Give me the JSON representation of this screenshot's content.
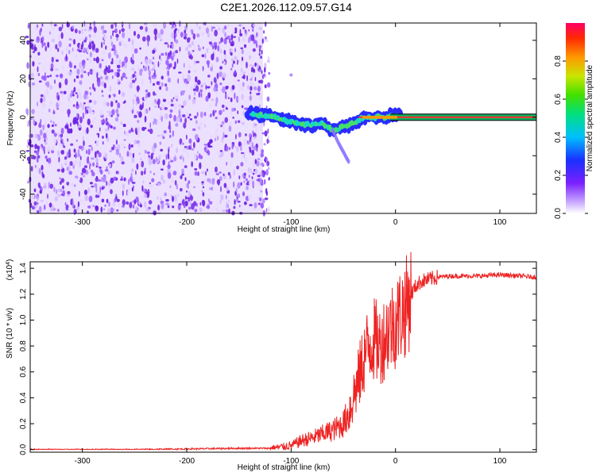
{
  "title": "C2E1.2026.112.09.57.G14",
  "chart_data": [
    {
      "type": "heatmap",
      "name": "spectrogram",
      "xlabel": "Height of straight line (km)",
      "ylabel": "Frequency (Hz)",
      "xlim": [
        -350,
        135
      ],
      "ylim": [
        -50,
        49
      ],
      "xticks": [
        "-300",
        "-200",
        "-100",
        "0",
        "100"
      ],
      "xtick_values": [
        -300,
        -200,
        -100,
        0,
        100
      ],
      "yticks": [
        "-40",
        "-20",
        "0",
        "20",
        "40"
      ],
      "ytick_values": [
        -40,
        -20,
        0,
        20,
        40
      ],
      "noise_region_km": [
        -350,
        -127
      ],
      "signal_track": {
        "x": [
          -140,
          -125,
          -110,
          -95,
          -80,
          -70,
          -60,
          -50,
          -40,
          -30,
          -20,
          -10,
          0,
          135
        ],
        "y": [
          2,
          1,
          -1,
          -3,
          -4,
          -3,
          -7,
          -5,
          -3,
          0,
          0,
          0,
          1,
          0
        ]
      },
      "branch_track": {
        "x": [
          -60,
          -55,
          -50,
          -45
        ],
        "y": [
          -7,
          -13,
          -18,
          -23
        ]
      },
      "outlier": {
        "x": -100,
        "y": 22
      },
      "colorbar": {
        "label": "Normalized spectral amplitude",
        "ticks": [
          "0.0",
          "0.2",
          "0.4",
          "0.6",
          "0.8"
        ],
        "tick_values": [
          0.0,
          0.2,
          0.4,
          0.6,
          0.8
        ],
        "range": [
          0,
          1
        ]
      }
    },
    {
      "type": "line",
      "name": "snr",
      "xlabel": "Height of straight line (km)",
      "ylabel": "SNR (10 * v/v)",
      "scale_label": "(x10",
      "scale_exp": "4",
      "scale_close": ")",
      "xlim": [
        -350,
        135
      ],
      "ylim": [
        -0.02,
        1.45
      ],
      "xticks": [
        "-300",
        "-200",
        "-100",
        "0",
        "100"
      ],
      "xtick_values": [
        -300,
        -200,
        -100,
        0,
        100
      ],
      "yticks": [
        "0.0",
        "0.2",
        "0.4",
        "0.6",
        "0.8",
        "1.0",
        "1.2",
        "1.4"
      ],
      "ytick_values": [
        0.0,
        0.2,
        0.4,
        0.6,
        0.8,
        1.0,
        1.2,
        1.4
      ],
      "series": [
        {
          "name": "SNR",
          "color": "#ee2222",
          "x": [
            -350,
            -250,
            -150,
            -120,
            -100,
            -90,
            -80,
            -70,
            -60,
            -50,
            -45,
            -40,
            -35,
            -30,
            -25,
            -20,
            -15,
            -10,
            -5,
            0,
            5,
            10,
            15,
            20,
            25,
            30,
            40,
            50,
            60,
            80,
            100,
            120,
            135
          ],
          "y": [
            0.0,
            0.0,
            0.01,
            0.01,
            0.03,
            0.07,
            0.09,
            0.12,
            0.15,
            0.2,
            0.28,
            0.42,
            0.55,
            0.72,
            0.82,
            0.85,
            0.8,
            0.88,
            0.95,
            0.98,
            1.05,
            1.1,
            1.2,
            1.27,
            1.3,
            1.31,
            1.33,
            1.34,
            1.34,
            1.34,
            1.35,
            1.34,
            1.33
          ]
        }
      ]
    }
  ],
  "colors": {
    "axis": "#000000",
    "line": "#ee2222",
    "noise": "#7a33e6"
  }
}
